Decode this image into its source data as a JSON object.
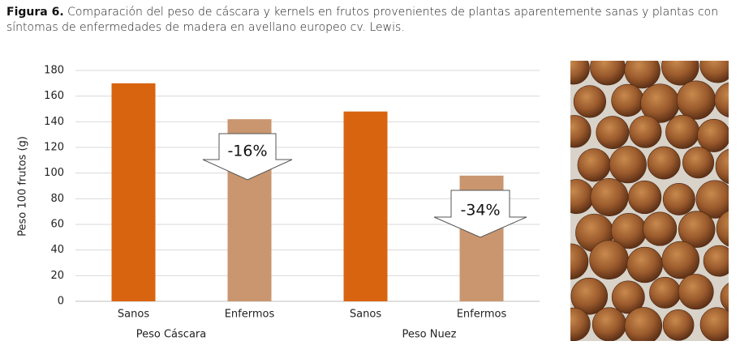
{
  "chart_data": {
    "type": "bar",
    "title_label": "Figura 6.",
    "title": "Comparación del peso de cáscara y kernels en frutos provenientes de plantas aparentemente sanas y plantas con síntomas de enfermedades de madera en avellano europeo cv. Lewis.",
    "y_label": "Peso 100 frutos (g)",
    "categories": [
      "Sanos",
      "Enfermos",
      "Sanos",
      "Enfermos"
    ],
    "groups": [
      "Peso Cáscara",
      "Peso Nuez"
    ],
    "values": [
      170,
      142,
      148,
      98
    ],
    "colors": [
      "#d9640f",
      "#c9966f",
      "#d9640f",
      "#c9966f"
    ],
    "annotations": [
      "-16%",
      "-34%"
    ],
    "ylim": [
      0,
      180
    ],
    "yticks": [
      0,
      20,
      40,
      60,
      80,
      100,
      120,
      140,
      160,
      180
    ],
    "grid": true
  }
}
